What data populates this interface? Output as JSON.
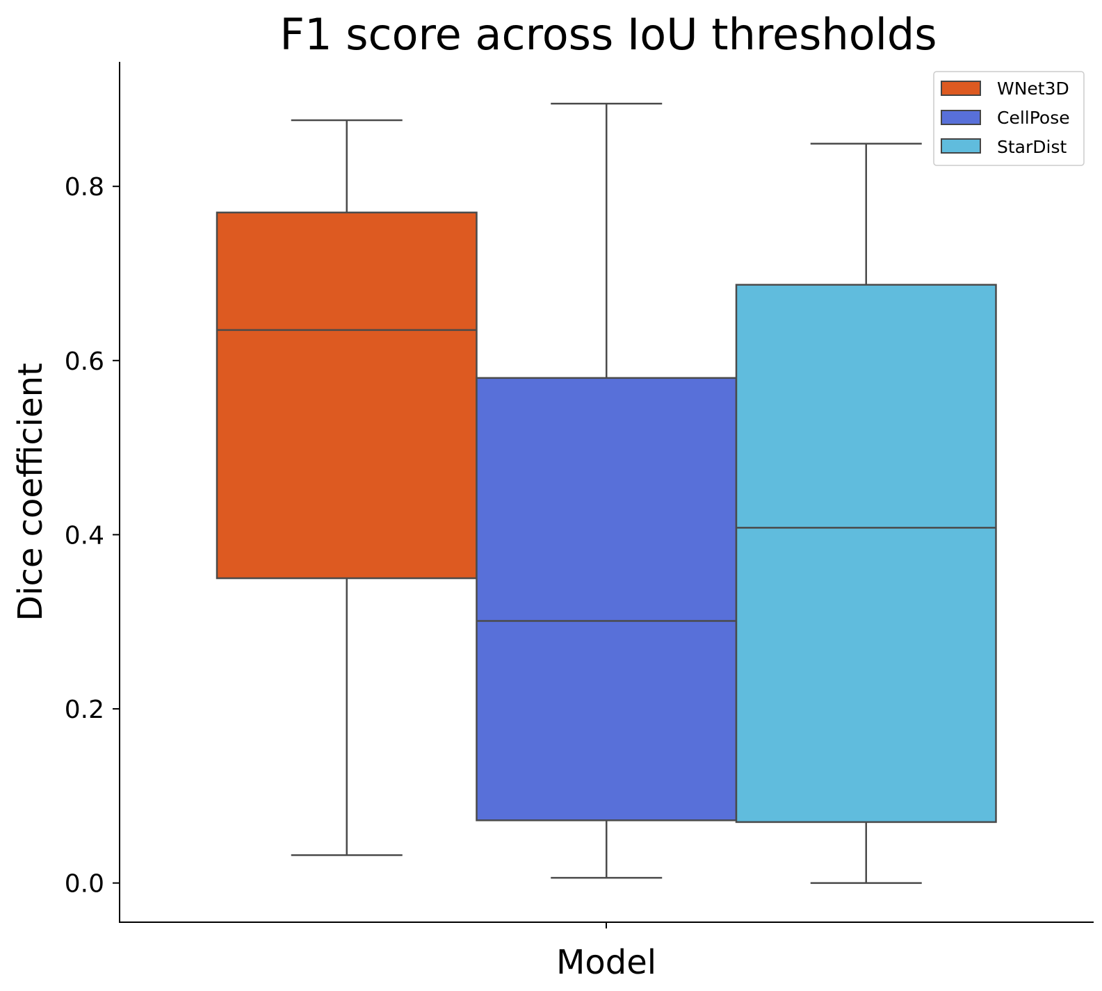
{
  "chart_data": {
    "type": "box",
    "title": "F1 score across IoU thresholds",
    "xlabel": "Model",
    "ylabel": "Dice coefficient",
    "ylim": [
      -0.045,
      0.943
    ],
    "yticks": [
      0.0,
      0.2,
      0.4,
      0.6,
      0.8
    ],
    "ytick_labels": [
      "0.0",
      "0.2",
      "0.4",
      "0.6",
      "0.8"
    ],
    "grid": false,
    "legend_position": "top-right",
    "series": [
      {
        "name": "WNet3D",
        "color": "#dd5a21",
        "whisker_low": 0.032,
        "q1": 0.35,
        "median": 0.635,
        "q3": 0.77,
        "whisker_high": 0.876
      },
      {
        "name": "CellPose",
        "color": "#5870d9",
        "whisker_low": 0.006,
        "q1": 0.072,
        "median": 0.301,
        "q3": 0.58,
        "whisker_high": 0.895
      },
      {
        "name": "StarDist",
        "color": "#60bcdd",
        "whisker_low": 0.0,
        "q1": 0.07,
        "median": 0.408,
        "q3": 0.687,
        "whisker_high": 0.849
      }
    ]
  }
}
